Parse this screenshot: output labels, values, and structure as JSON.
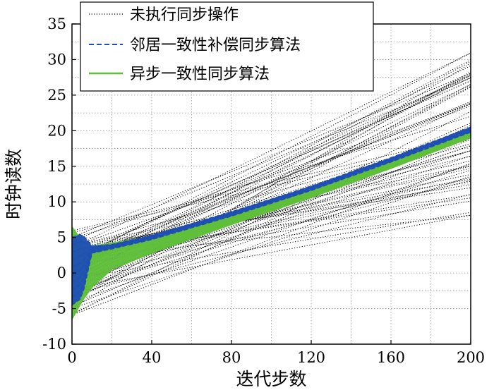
{
  "chart_data": {
    "type": "line",
    "xlabel": "迭代步数",
    "ylabel": "时钟读数",
    "xlim": [
      0,
      200
    ],
    "ylim": [
      -10,
      35
    ],
    "xticks": [
      0,
      40,
      80,
      120,
      160,
      200
    ],
    "yticks": [
      -10,
      -5,
      0,
      5,
      10,
      15,
      20,
      25,
      30,
      35
    ],
    "grid": true,
    "legend_position": "top-left",
    "series": [
      {
        "name": "未执行同步操作",
        "color": "#000000",
        "style": "dotted",
        "description_values": {
          "x": [
            0,
            200
          ],
          "start_y_range": [
            -6,
            6
          ],
          "end_y_range": [
            8,
            31
          ]
        }
      },
      {
        "name": "邻居一致性补偿同步算法",
        "color": "#1f4fb3",
        "style": "dashed",
        "x": [
          0,
          5,
          10,
          20,
          40,
          80,
          120,
          160,
          200
        ],
        "y_upper": [
          5,
          5.5,
          3.8,
          4.0,
          5.3,
          8.6,
          12.2,
          16.2,
          20.5
        ],
        "y_lower": [
          -4.5,
          -3.5,
          2.8,
          3.4,
          4.7,
          8.0,
          11.6,
          15.6,
          19.8
        ]
      },
      {
        "name": "异步一致性同步算法",
        "color": "#5fbf3a",
        "style": "solid",
        "x": [
          0,
          5,
          10,
          20,
          40,
          80,
          120,
          160,
          200
        ],
        "y_upper": [
          6.5,
          4.5,
          3.8,
          4.2,
          5.2,
          8.3,
          11.7,
          15.6,
          19.9
        ],
        "y_lower": [
          -6.5,
          -4.0,
          -2.0,
          0.5,
          2.8,
          6.8,
          10.6,
          14.7,
          19.0
        ]
      }
    ]
  }
}
